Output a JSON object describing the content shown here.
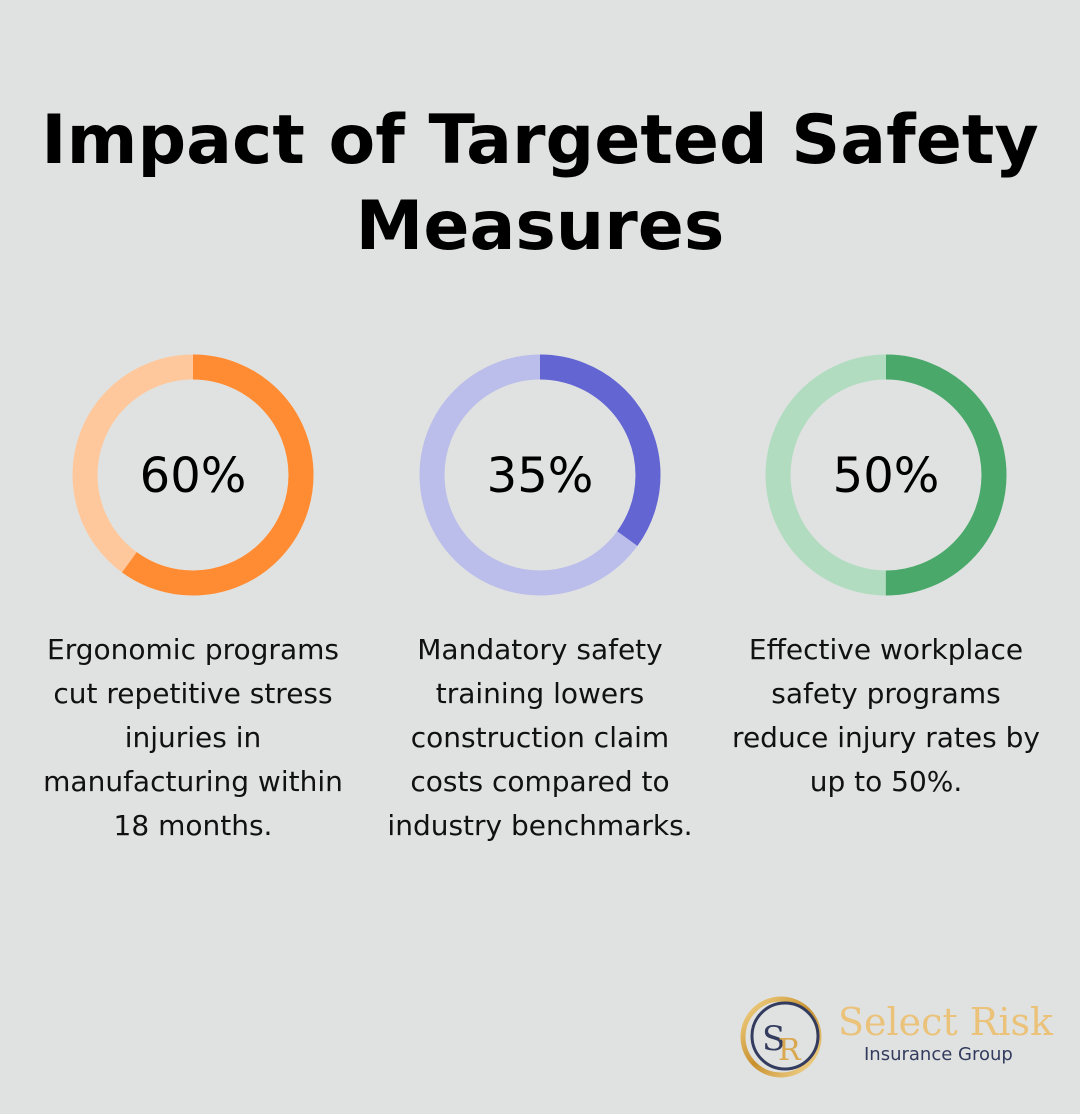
{
  "title": "Impact of Targeted Safety Measures",
  "chart_data": [
    {
      "type": "pie",
      "variant": "donut",
      "value": 60,
      "label": "60%",
      "description": "Ergonomic programs cut repetitive stress injuries in manufacturing within 18 months.",
      "color": "#ff8c33",
      "track_color": "#ffc89c"
    },
    {
      "type": "pie",
      "variant": "donut",
      "value": 35,
      "label": "35%",
      "description": "Mandatory safety training lowers construction claim costs compared to industry benchmarks.",
      "color": "#6265d2",
      "track_color": "#bbbdea"
    },
    {
      "type": "pie",
      "variant": "donut",
      "value": 50,
      "label": "50%",
      "description": "Effective workplace safety programs reduce injury rates by up to 50%.",
      "color": "#4aa86a",
      "track_color": "#b1dcc0"
    }
  ],
  "logo": {
    "monogram": "SR",
    "name": "Select Risk",
    "subtitle": "Insurance Group"
  }
}
